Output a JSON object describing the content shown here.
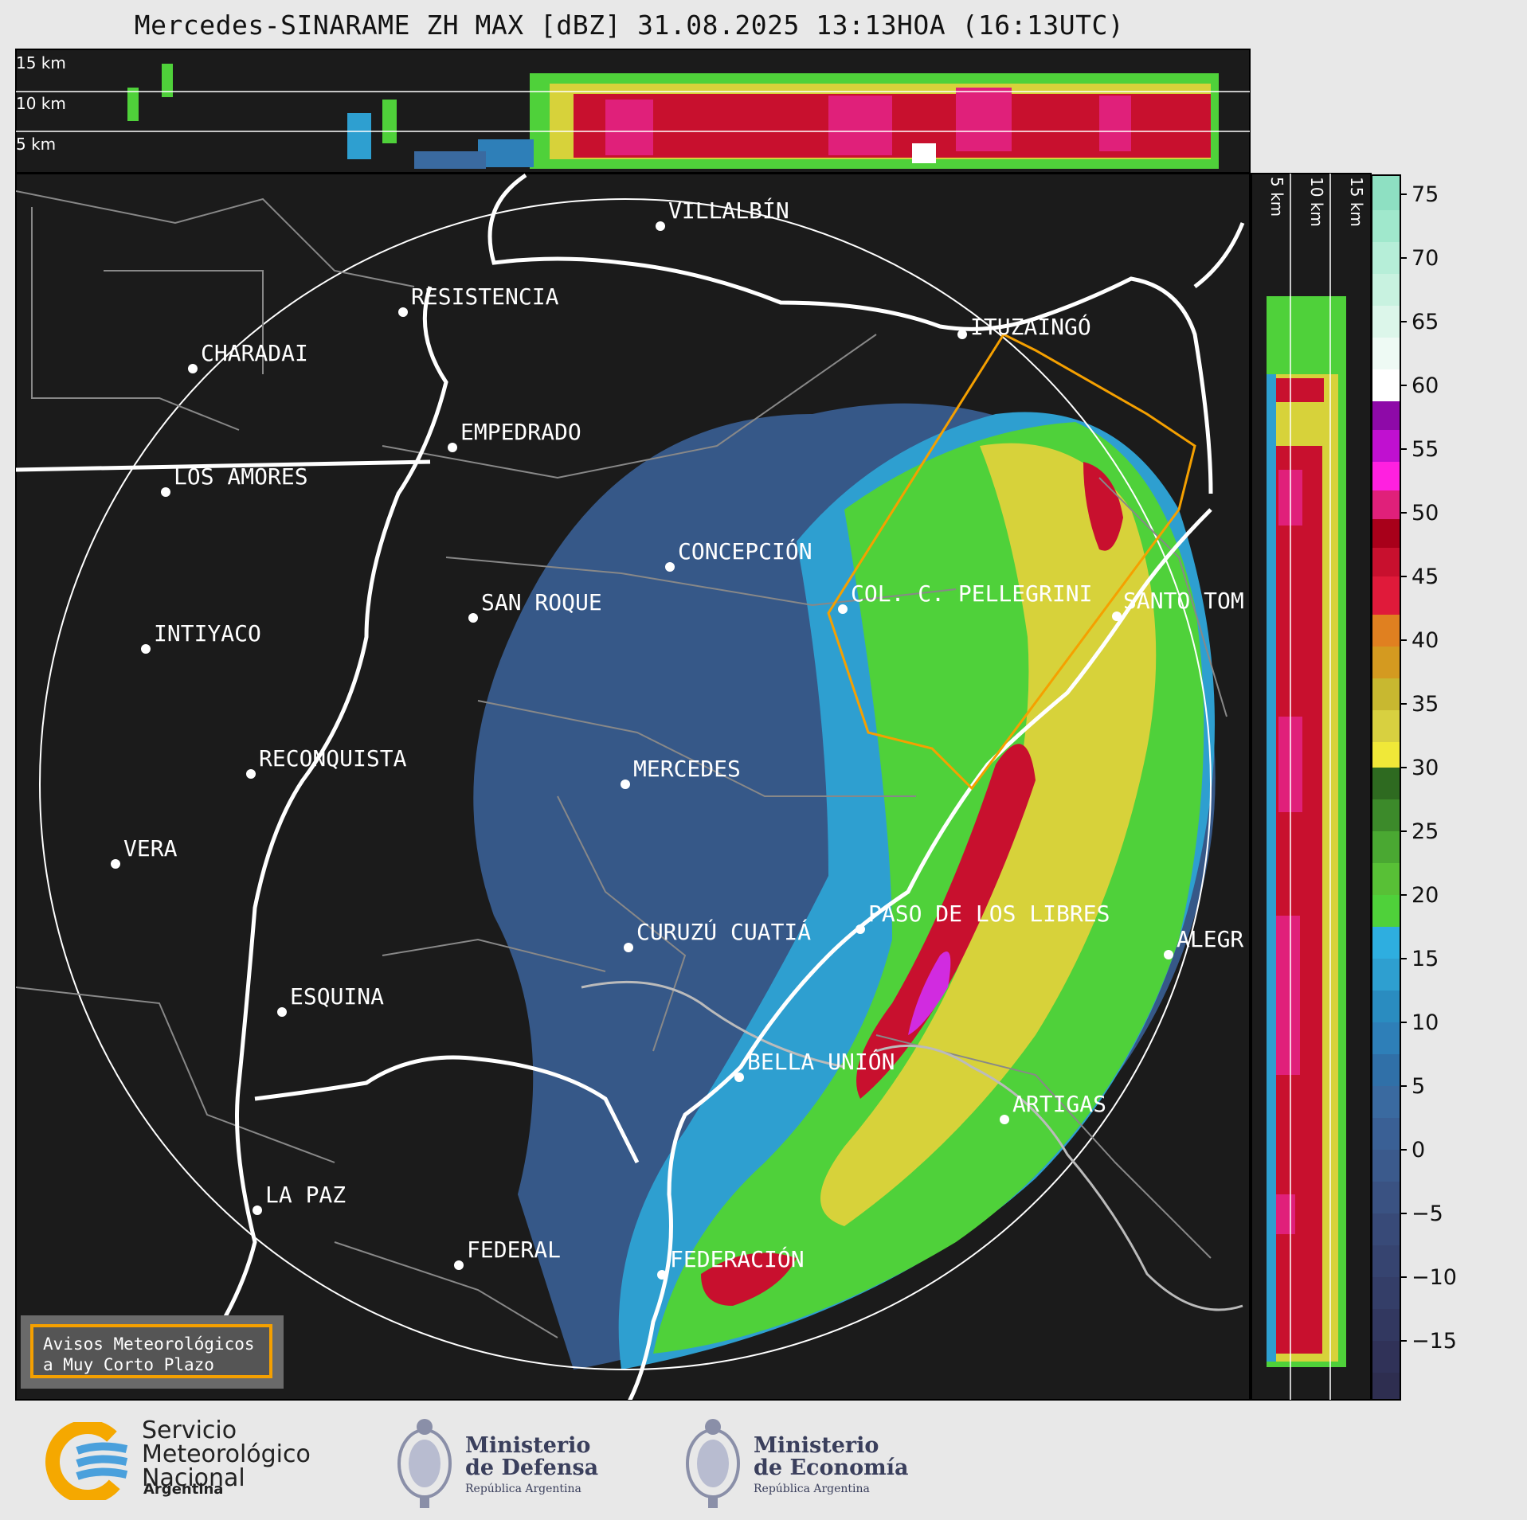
{
  "title": "Mercedes-SINARAME ZH MAX [dBZ] 31.08.2025 13:13HOA (16:13UTC)",
  "height_profiles": {
    "top_labels": [
      "15 km",
      "10 km",
      "5 km"
    ],
    "side_labels": [
      "5 km",
      "10 km",
      "15 km"
    ]
  },
  "cities": [
    {
      "name": "VILLALBÍN"
    },
    {
      "name": "RESISTENCIA"
    },
    {
      "name": "CHARADAI"
    },
    {
      "name": "EMPEDRADO"
    },
    {
      "name": "LOS AMORES"
    },
    {
      "name": "ITUZAINGÓ"
    },
    {
      "name": "CONCEPCIÓN"
    },
    {
      "name": "SAN ROQUE"
    },
    {
      "name": "COL. C. PELLEGRINI"
    },
    {
      "name": "SANTO TOM"
    },
    {
      "name": "INTIYACO"
    },
    {
      "name": "RECONQUISTA"
    },
    {
      "name": "MERCEDES"
    },
    {
      "name": "VERA"
    },
    {
      "name": "PASO DE LOS LIBRES"
    },
    {
      "name": "CURUZÚ CUATIÁ"
    },
    {
      "name": "ALEGR"
    },
    {
      "name": "ESQUINA"
    },
    {
      "name": "BELLA UNIÓN"
    },
    {
      "name": "ARTIGAS"
    },
    {
      "name": "LA PAZ"
    },
    {
      "name": "FEDERAL"
    },
    {
      "name": "FEDERACIÓN"
    }
  ],
  "colorbar": {
    "ticks": [
      "75",
      "70",
      "65",
      "60",
      "55",
      "50",
      "45",
      "40",
      "35",
      "30",
      "25",
      "20",
      "15",
      "10",
      "5",
      "0",
      "−5",
      "−10",
      "−15"
    ]
  },
  "aviso": {
    "line1": "Avisos Meteorológicos",
    "line2": "a Muy Corto Plazo"
  },
  "logos": {
    "smn": {
      "line1": "Servicio",
      "line2": "Meteorológico",
      "line3": "Nacional",
      "country": "Argentina"
    },
    "defensa": {
      "line1": "Ministerio",
      "line2": "de Defensa",
      "sub": "República Argentina"
    },
    "economia": {
      "line1": "Ministerio",
      "line2": "de Economía",
      "sub": "República Argentina"
    }
  },
  "colors": {
    "background": "#1b1b1b",
    "page": "#e8e8e8",
    "alert_polygon": "#f5a000",
    "rivers": "#ffffff",
    "borders": "#888888"
  }
}
